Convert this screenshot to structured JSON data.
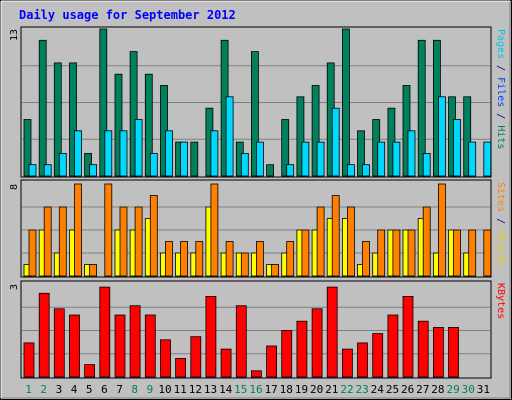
{
  "title": "Daily usage for September 2012",
  "chart_data": [
    {
      "type": "bar",
      "panel": "pages-files-hits",
      "ymax_label": "13",
      "ylim": [
        0,
        13
      ],
      "side_label": [
        {
          "text": "Pages",
          "color": "#00c8e0"
        },
        {
          "text": " / ",
          "color": "#000080"
        },
        {
          "text": "Files",
          "color": "#0040ff"
        },
        {
          "text": " / ",
          "color": "#000080"
        },
        {
          "text": "Hits",
          "color": "#008060"
        }
      ],
      "series": [
        {
          "name": "Hits",
          "color": "#00805c",
          "values": [
            5,
            12,
            10,
            10,
            2,
            13,
            9,
            11,
            9,
            8,
            3,
            3,
            6,
            12,
            3,
            11,
            1,
            5,
            7,
            8,
            10,
            13,
            4,
            5,
            6,
            8,
            12,
            12,
            7,
            7,
            0
          ]
        },
        {
          "name": "Pages",
          "color": "#00d8ff",
          "values": [
            1,
            1,
            2,
            4,
            1,
            4,
            4,
            5,
            2,
            4,
            3,
            0,
            4,
            7,
            2,
            3,
            0,
            1,
            3,
            3,
            6,
            1,
            1,
            3,
            3,
            4,
            2,
            7,
            5,
            3,
            3
          ]
        }
      ]
    },
    {
      "type": "bar",
      "panel": "sites-visits",
      "ymax_label": "8",
      "ylim": [
        0,
        8
      ],
      "side_label": [
        {
          "text": "Sites",
          "color": "#ff8000"
        },
        {
          "text": " / ",
          "color": "#000080"
        },
        {
          "text": "Visits",
          "color": "#e0d000"
        }
      ],
      "series": [
        {
          "name": "Visits",
          "color": "#ffff00",
          "values": [
            1,
            4,
            2,
            4,
            1,
            0,
            4,
            4,
            5,
            2,
            2,
            2,
            6,
            2,
            2,
            2,
            1,
            2,
            4,
            4,
            5,
            5,
            1,
            2,
            4,
            4,
            5,
            2,
            4,
            2,
            0
          ]
        },
        {
          "name": "Sites",
          "color": "#ff8000",
          "values": [
            4,
            6,
            6,
            8,
            1,
            8,
            6,
            6,
            7,
            3,
            3,
            3,
            8,
            3,
            2,
            3,
            1,
            3,
            4,
            6,
            7,
            6,
            3,
            4,
            4,
            4,
            6,
            8,
            4,
            4,
            4
          ]
        }
      ]
    },
    {
      "type": "bar",
      "panel": "kbytes",
      "ymax_label": "3",
      "ylim": [
        0,
        3
      ],
      "side_label": [
        {
          "text": "KBytes",
          "color": "#ff0000"
        }
      ],
      "series": [
        {
          "name": "KBytes",
          "color": "#ff0000",
          "values": [
            1.1,
            2.7,
            2.2,
            2.0,
            0.4,
            2.9,
            2.0,
            2.3,
            2.0,
            1.2,
            0.6,
            1.3,
            2.6,
            0.9,
            2.3,
            0.2,
            1.0,
            1.5,
            1.8,
            2.2,
            2.9,
            0.9,
            1.1,
            1.4,
            2.0,
            2.6,
            1.8,
            1.6,
            1.6,
            0,
            0
          ]
        }
      ]
    }
  ],
  "x_labels": [
    {
      "text": "1",
      "weekend": true
    },
    {
      "text": "2",
      "weekend": true
    },
    {
      "text": "3",
      "weekend": false
    },
    {
      "text": "4",
      "weekend": false
    },
    {
      "text": "5",
      "weekend": false
    },
    {
      "text": "6",
      "weekend": false
    },
    {
      "text": "7",
      "weekend": false
    },
    {
      "text": "8",
      "weekend": true
    },
    {
      "text": "9",
      "weekend": true
    },
    {
      "text": "10",
      "weekend": false
    },
    {
      "text": "11",
      "weekend": false
    },
    {
      "text": "12",
      "weekend": false
    },
    {
      "text": "13",
      "weekend": false
    },
    {
      "text": "14",
      "weekend": false
    },
    {
      "text": "15",
      "weekend": true
    },
    {
      "text": "16",
      "weekend": true
    },
    {
      "text": "17",
      "weekend": false
    },
    {
      "text": "18",
      "weekend": false
    },
    {
      "text": "19",
      "weekend": false
    },
    {
      "text": "20",
      "weekend": false
    },
    {
      "text": "21",
      "weekend": false
    },
    {
      "text": "22",
      "weekend": true
    },
    {
      "text": "23",
      "weekend": true
    },
    {
      "text": "24",
      "weekend": false
    },
    {
      "text": "25",
      "weekend": false
    },
    {
      "text": "26",
      "weekend": false
    },
    {
      "text": "27",
      "weekend": false
    },
    {
      "text": "28",
      "weekend": false
    },
    {
      "text": "29",
      "weekend": true
    },
    {
      "text": "30",
      "weekend": true
    },
    {
      "text": "31",
      "weekend": false
    }
  ],
  "colors": {
    "background": "#c0c0c0",
    "title": "#0000ff",
    "axis_text": "#000000",
    "weekday_label": "#000000",
    "weekend_label": "#008060",
    "grid": "#808080"
  }
}
